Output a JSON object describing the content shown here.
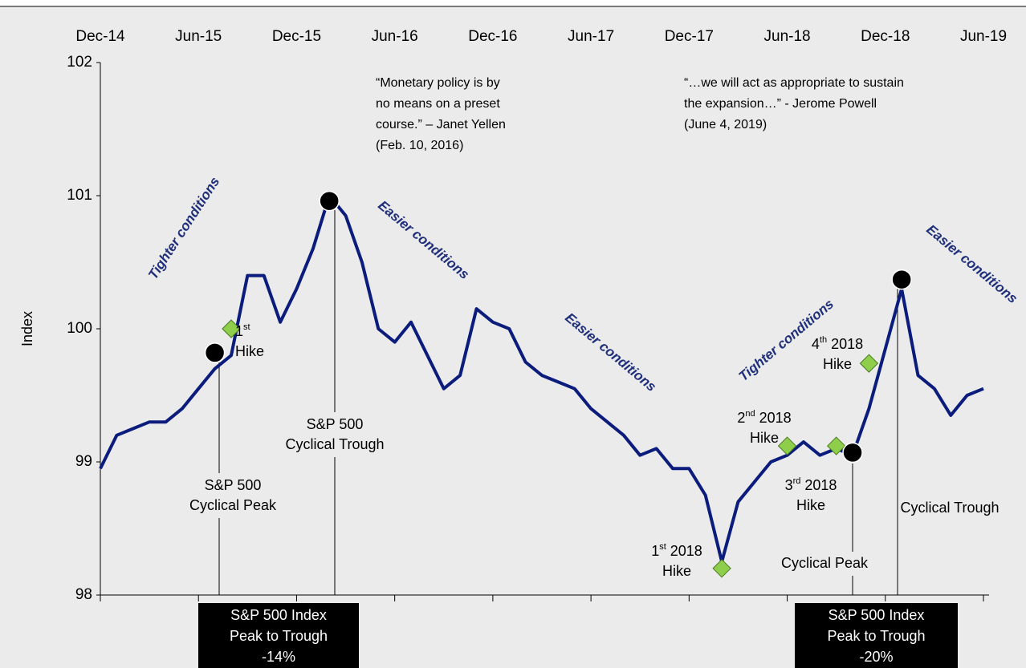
{
  "chart_data": {
    "type": "line",
    "y_label": "Index",
    "color": "#0b1c7c",
    "xlim": [
      "2014-12",
      "2019-06"
    ],
    "xticks": [
      {
        "value": "2014-12",
        "label": "Dec-14"
      },
      {
        "value": "2015-06",
        "label": "Jun-15"
      },
      {
        "value": "2015-12",
        "label": "Dec-15"
      },
      {
        "value": "2016-06",
        "label": "Jun-16"
      },
      {
        "value": "2016-12",
        "label": "Dec-16"
      },
      {
        "value": "2017-06",
        "label": "Jun-17"
      },
      {
        "value": "2017-12",
        "label": "Dec-17"
      },
      {
        "value": "2018-06",
        "label": "Jun-18"
      },
      {
        "value": "2018-12",
        "label": "Dec-18"
      },
      {
        "value": "2019-06",
        "label": "Jun-19"
      }
    ],
    "ylim": [
      98,
      102
    ],
    "yticks": [
      98,
      99,
      100,
      101,
      102
    ],
    "x": [
      "2014-12",
      "2015-01",
      "2015-02",
      "2015-03",
      "2015-04",
      "2015-05",
      "2015-06",
      "2015-07",
      "2015-08",
      "2015-09",
      "2015-10",
      "2015-11",
      "2015-12",
      "2016-01",
      "2016-02",
      "2016-03",
      "2016-04",
      "2016-05",
      "2016-06",
      "2016-07",
      "2016-08",
      "2016-09",
      "2016-10",
      "2016-11",
      "2016-12",
      "2017-01",
      "2017-02",
      "2017-03",
      "2017-04",
      "2017-05",
      "2017-06",
      "2017-07",
      "2017-08",
      "2017-09",
      "2017-10",
      "2017-11",
      "2017-12",
      "2018-01",
      "2018-02",
      "2018-03",
      "2018-04",
      "2018-05",
      "2018-06",
      "2018-07",
      "2018-08",
      "2018-09",
      "2018-10",
      "2018-11",
      "2018-12",
      "2019-01",
      "2019-02",
      "2019-03",
      "2019-04",
      "2019-05",
      "2019-06"
    ],
    "values": [
      98.95,
      99.2,
      99.25,
      99.3,
      99.3,
      99.4,
      99.55,
      99.7,
      99.8,
      100.4,
      100.4,
      100.05,
      100.3,
      100.6,
      101.0,
      100.85,
      100.5,
      100.0,
      99.9,
      100.05,
      99.8,
      99.55,
      99.65,
      100.15,
      100.05,
      100.0,
      99.75,
      99.65,
      99.6,
      99.55,
      99.4,
      99.3,
      99.2,
      99.05,
      99.1,
      98.95,
      98.95,
      98.75,
      98.25,
      98.7,
      98.85,
      99.0,
      99.05,
      99.15,
      99.05,
      99.1,
      99.05,
      99.4,
      99.85,
      100.3,
      99.65,
      99.55,
      99.35,
      99.5,
      99.55
    ],
    "turning_points": {
      "color": "#000000",
      "x": [
        "2015-07",
        "2016-02",
        "2018-10",
        "2019-01"
      ],
      "values": [
        99.82,
        100.96,
        99.07,
        100.37
      ]
    },
    "hikes": {
      "color": "#8fce4a",
      "x": [
        "2015-08",
        "2018-02",
        "2018-06",
        "2018-09",
        "2018-11"
      ],
      "values": [
        100.0,
        98.2,
        99.12,
        99.12,
        99.74
      ]
    },
    "annotations": [
      {
        "lines": [
          "“Monetary policy is by",
          "no means on a preset",
          "course.” – Janet Yellen",
          "(Feb. 10, 2016)"
        ]
      },
      {
        "lines": [
          "“…we will act as appropriate to sustain",
          "the expansion…” - Jerome Powell",
          "(June 4, 2019)"
        ]
      },
      {
        "lines": [
          [
            "1",
            "st"
          ],
          "Hike"
        ]
      },
      {
        "lines": [
          "S&P 500",
          "Cyclical Peak"
        ]
      },
      {
        "lines": [
          "S&P 500",
          "Cyclical Trough"
        ]
      },
      {
        "lines": [
          [
            "1",
            "st",
            " 2018"
          ],
          "Hike"
        ]
      },
      {
        "lines": [
          [
            "2",
            "nd",
            " 2018"
          ],
          "Hike"
        ]
      },
      {
        "lines": [
          [
            "3",
            "rd",
            " 2018"
          ],
          "Hike"
        ]
      },
      {
        "lines": [
          [
            "4",
            "th",
            " 2018"
          ],
          "Hike"
        ]
      },
      {
        "lines": [
          "Cyclical Peak"
        ]
      },
      {
        "lines": [
          "Cyclical Trough"
        ]
      }
    ],
    "conditions": [
      "Tighter conditions",
      "Easier conditions",
      "Easier conditions",
      "Tighter conditions",
      "Easier conditions"
    ],
    "boxes": [
      [
        "S&P 500 Index",
        "Peak to Trough",
        "-14%"
      ],
      [
        "S&P 500 Index",
        "Peak to Trough",
        "-20%"
      ]
    ]
  }
}
